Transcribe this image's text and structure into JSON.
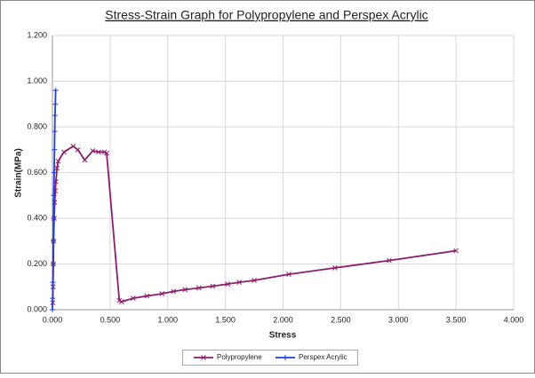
{
  "chart_data": {
    "type": "scatter-line",
    "title": "Stress-Strain Graph for Polypropylene and Perspex Acrylic",
    "x_label": "Stress",
    "y_label": "Strain(MPa)",
    "xlim": [
      0,
      4
    ],
    "ylim": [
      0,
      1.2
    ],
    "xticks": [
      {
        "value": 0,
        "label": "0.000"
      },
      {
        "value": 0.5,
        "label": "0.500"
      },
      {
        "value": 1,
        "label": "1.000"
      },
      {
        "value": 1.5,
        "label": "1.500"
      },
      {
        "value": 2,
        "label": "2.000"
      },
      {
        "value": 2.5,
        "label": "2.500"
      },
      {
        "value": 3,
        "label": "3.000"
      },
      {
        "value": 3.5,
        "label": "3.500"
      },
      {
        "value": 4,
        "label": "4.000"
      }
    ],
    "yticks": [
      {
        "value": 0,
        "label": "0.000"
      },
      {
        "value": 0.2,
        "label": "0.200"
      },
      {
        "value": 0.4,
        "label": "0.400"
      },
      {
        "value": 0.6,
        "label": "0.600"
      },
      {
        "value": 0.8,
        "label": "0.800"
      },
      {
        "value": 1,
        "label": "1.000"
      },
      {
        "value": 1.2,
        "label": "1.200"
      }
    ],
    "grid": true,
    "legend": "bottom",
    "series": [
      {
        "name": "Polypropylene",
        "color": "#8e1c6e",
        "x": [
          0.003,
          0.005,
          0.008,
          0.01,
          0.015,
          0.02,
          0.025,
          0.03,
          0.04,
          0.05,
          0.1,
          0.18,
          0.22,
          0.28,
          0.35,
          0.4,
          0.45,
          0.47,
          0.58,
          0.6,
          0.7,
          0.82,
          0.95,
          1.05,
          1.15,
          1.27,
          1.39,
          1.52,
          1.62,
          1.75,
          2.05,
          2.45,
          2.92,
          3.5
        ],
        "values": [
          0.03,
          0.1,
          0.2,
          0.3,
          0.4,
          0.47,
          0.52,
          0.56,
          0.62,
          0.65,
          0.69,
          0.715,
          0.7,
          0.655,
          0.695,
          0.69,
          0.69,
          0.685,
          0.04,
          0.035,
          0.05,
          0.06,
          0.07,
          0.08,
          0.088,
          0.095,
          0.103,
          0.112,
          0.12,
          0.128,
          0.155,
          0.183,
          0.215,
          0.258
        ]
      },
      {
        "name": "Perspex Acrylic",
        "color": "#1f3fd8",
        "x": [
          0,
          0.002,
          0.004,
          0.006,
          0.008,
          0.01,
          0.012,
          0.015,
          0.018,
          0.02,
          0.022,
          0.025,
          0.028
        ],
        "values": [
          0,
          0.05,
          0.12,
          0.2,
          0.3,
          0.4,
          0.5,
          0.6,
          0.7,
          0.78,
          0.85,
          0.9,
          0.96
        ]
      }
    ]
  }
}
